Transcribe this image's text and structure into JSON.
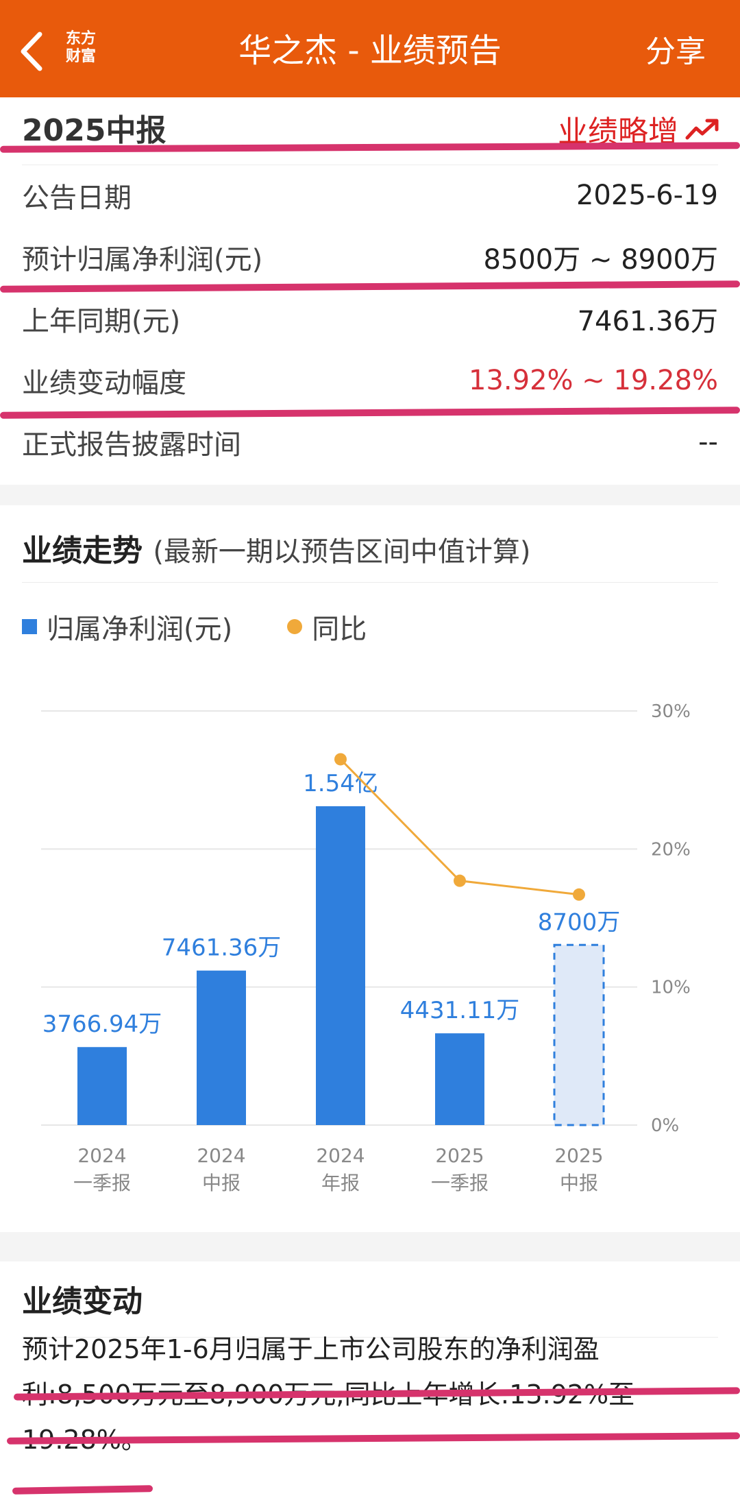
{
  "header": {
    "back_icon": "chevron-left-icon",
    "logo_line1": "东方",
    "logo_line2": "财富",
    "title": "华之杰 - 业绩预告",
    "share_label": "分享"
  },
  "forecast": {
    "period": "2025中报",
    "trend_label": "业绩略增",
    "trend_icon": "trending-up-icon",
    "rows": [
      {
        "label": "公告日期",
        "value": "2025-6-19"
      },
      {
        "label": "预计归属净利润(元)",
        "value": "8500万 ~ 8900万"
      },
      {
        "label": "上年同期(元)",
        "value": "7461.36万"
      },
      {
        "label": "业绩变动幅度",
        "value": "13.92% ~ 19.28%"
      },
      {
        "label": "正式报告披露时间",
        "value": "--"
      }
    ]
  },
  "trend_section": {
    "title": "业绩走势",
    "subtitle": "(最新一期以预告区间中值计算)",
    "legend_bar": "归属净利润(元)",
    "legend_line": "同比"
  },
  "chart_data": {
    "type": "bar",
    "categories": [
      "2024\n一季报",
      "2024\n中报",
      "2024\n年报",
      "2025\n一季报",
      "2025\n中报"
    ],
    "category_lines": [
      [
        "2024",
        "一季报"
      ],
      [
        "2024",
        "中报"
      ],
      [
        "2024",
        "年报"
      ],
      [
        "2025",
        "一季报"
      ],
      [
        "2025",
        "中报"
      ]
    ],
    "series": [
      {
        "name": "归属净利润(元)",
        "values": [
          3766.94,
          7461.36,
          15400,
          4431.11,
          8700
        ],
        "unit": "万",
        "labels": [
          "3766.94万",
          "7461.36万",
          "1.54亿",
          "4431.11万",
          "8700万"
        ],
        "forecast_last": true
      },
      {
        "name": "同比",
        "type": "line",
        "values": [
          null,
          null,
          26.5,
          17.7,
          16.7
        ],
        "unit": "%"
      }
    ],
    "right_axis_ticks": [
      "30%",
      "20%",
      "10%",
      "0%"
    ],
    "right_ylim": [
      0,
      30
    ],
    "left_ylim": [
      0,
      20000
    ],
    "colors": {
      "bar": "#2f7fdd",
      "forecast_fill": "#dfe9f8",
      "line": "#f0a93a",
      "label": "#2f7fdd"
    }
  },
  "change_section": {
    "title": "业绩变动",
    "text": "预计2025年1-6月归属于上市公司股东的净利润盈利:8,500万元至8,900万元,同比上年增长:13.92%至19.28%。"
  }
}
